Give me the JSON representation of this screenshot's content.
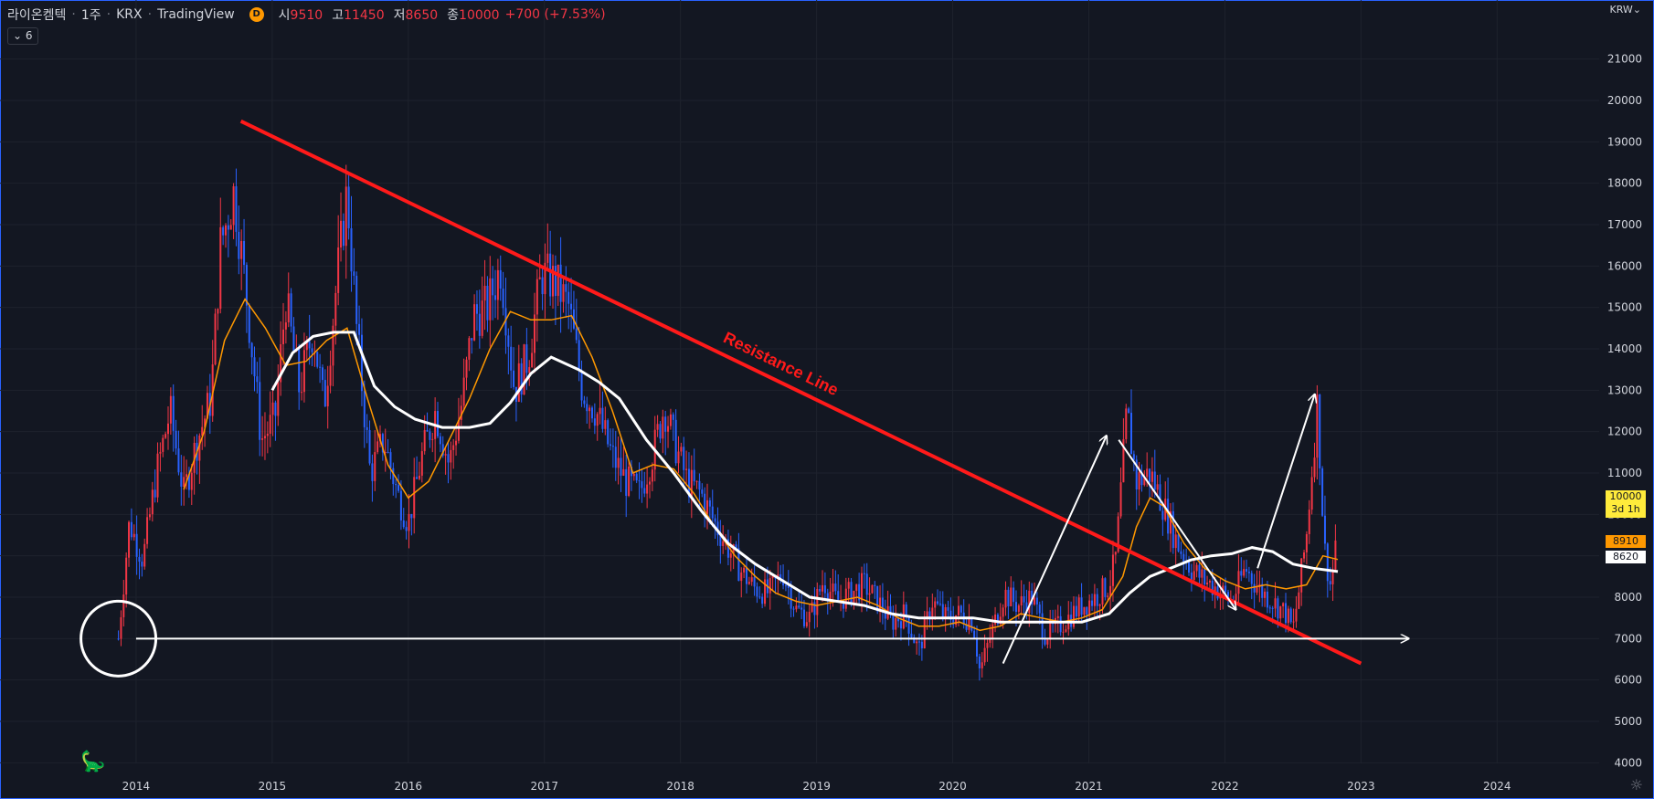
{
  "header": {
    "symbol": "라이온켐텍",
    "interval": "1주",
    "exchange": "KRX",
    "source": "TradingView",
    "badge": "D",
    "open_label": "시",
    "open": "9510",
    "high_label": "고",
    "high": "11450",
    "low_label": "저",
    "low": "8650",
    "close_label": "종",
    "close": "10000",
    "change": "+700 (+7.53%)",
    "indicator_toggle": "6",
    "currency": "KRW"
  },
  "colors": {
    "background": "#131722",
    "grid": "#1e222d",
    "up_candle": "#f23645",
    "down_candle": "#2962ff",
    "ma_short": "#ff9800",
    "ma_long": "#ffffff",
    "resistance": "#ff1a1a",
    "drawing": "#ffffff"
  },
  "price_tags": {
    "last": "10000",
    "countdown": "3d 1h",
    "ma_short_value": "8910",
    "ma_long_value": "8620"
  },
  "chart_data": {
    "type": "candlestick",
    "xlabel": "",
    "ylabel": "",
    "ylim": [
      3500,
      21500
    ],
    "yticks": [
      4000,
      5000,
      6000,
      7000,
      8000,
      9000,
      10000,
      11000,
      12000,
      13000,
      14000,
      15000,
      16000,
      17000,
      18000,
      19000,
      20000,
      21000
    ],
    "xlim": [
      2013.0,
      2024.75
    ],
    "xticks": [
      "2014",
      "2015",
      "2016",
      "2017",
      "2018",
      "2019",
      "2020",
      "2021",
      "2022",
      "2023",
      "2024"
    ],
    "grid": true,
    "close_series": [
      [
        2013.87,
        7000
      ],
      [
        2013.95,
        9800
      ],
      [
        2014.05,
        8900
      ],
      [
        2014.15,
        11000
      ],
      [
        2014.25,
        12500
      ],
      [
        2014.35,
        10500
      ],
      [
        2014.45,
        11800
      ],
      [
        2014.55,
        12800
      ],
      [
        2014.62,
        16500
      ],
      [
        2014.72,
        17800
      ],
      [
        2014.82,
        15000
      ],
      [
        2014.92,
        11800
      ],
      [
        2015.02,
        12300
      ],
      [
        2015.1,
        15200
      ],
      [
        2015.2,
        13000
      ],
      [
        2015.3,
        14500
      ],
      [
        2015.38,
        12600
      ],
      [
        2015.48,
        15800
      ],
      [
        2015.55,
        17800
      ],
      [
        2015.62,
        14500
      ],
      [
        2015.72,
        11000
      ],
      [
        2015.82,
        11800
      ],
      [
        2015.92,
        10500
      ],
      [
        2016.0,
        9800
      ],
      [
        2016.1,
        11400
      ],
      [
        2016.2,
        12500
      ],
      [
        2016.3,
        11200
      ],
      [
        2016.4,
        12800
      ],
      [
        2016.48,
        14800
      ],
      [
        2016.58,
        15000
      ],
      [
        2016.68,
        16000
      ],
      [
        2016.78,
        13000
      ],
      [
        2016.88,
        13800
      ],
      [
        2016.98,
        15800
      ],
      [
        2017.08,
        15600
      ],
      [
        2017.18,
        15000
      ],
      [
        2017.28,
        13000
      ],
      [
        2017.38,
        12500
      ],
      [
        2017.5,
        11400
      ],
      [
        2017.6,
        10800
      ],
      [
        2017.7,
        10500
      ],
      [
        2017.8,
        11500
      ],
      [
        2017.88,
        12600
      ],
      [
        2017.95,
        11800
      ],
      [
        2018.05,
        10800
      ],
      [
        2018.15,
        10500
      ],
      [
        2018.25,
        9800
      ],
      [
        2018.35,
        9200
      ],
      [
        2018.45,
        8600
      ],
      [
        2018.55,
        8200
      ],
      [
        2018.65,
        8100
      ],
      [
        2018.75,
        8600
      ],
      [
        2018.85,
        7700
      ],
      [
        2018.95,
        7500
      ],
      [
        2019.05,
        8400
      ],
      [
        2019.15,
        7900
      ],
      [
        2019.25,
        8100
      ],
      [
        2019.35,
        8300
      ],
      [
        2019.45,
        7900
      ],
      [
        2019.55,
        7400
      ],
      [
        2019.65,
        7600
      ],
      [
        2019.75,
        6700
      ],
      [
        2019.85,
        7900
      ],
      [
        2019.95,
        7500
      ],
      [
        2020.05,
        7600
      ],
      [
        2020.15,
        7400
      ],
      [
        2020.2,
        6200
      ],
      [
        2020.28,
        7100
      ],
      [
        2020.38,
        8100
      ],
      [
        2020.48,
        7800
      ],
      [
        2020.58,
        8000
      ],
      [
        2020.68,
        7100
      ],
      [
        2020.78,
        7300
      ],
      [
        2020.88,
        7600
      ],
      [
        2020.95,
        7800
      ],
      [
        2021.05,
        8000
      ],
      [
        2021.15,
        8300
      ],
      [
        2021.2,
        9000
      ],
      [
        2021.28,
        12500
      ],
      [
        2021.35,
        10800
      ],
      [
        2021.45,
        11000
      ],
      [
        2021.55,
        10200
      ],
      [
        2021.65,
        9300
      ],
      [
        2021.75,
        8700
      ],
      [
        2021.85,
        8400
      ],
      [
        2021.95,
        8200
      ],
      [
        2022.05,
        7900
      ],
      [
        2022.15,
        8700
      ],
      [
        2022.25,
        8200
      ],
      [
        2022.35,
        7900
      ],
      [
        2022.45,
        7600
      ],
      [
        2022.5,
        7200
      ],
      [
        2022.55,
        8300
      ],
      [
        2022.6,
        9500
      ],
      [
        2022.68,
        12700
      ],
      [
        2022.73,
        9200
      ],
      [
        2022.78,
        8200
      ],
      [
        2022.83,
        10000
      ]
    ],
    "series": [
      {
        "name": "",
        "color": "#ff9800",
        "type": "moving-average",
        "values": [
          [
            2014.35,
            10600
          ],
          [
            2014.5,
            12000
          ],
          [
            2014.65,
            14200
          ],
          [
            2014.8,
            15200
          ],
          [
            2014.95,
            14500
          ],
          [
            2015.1,
            13600
          ],
          [
            2015.25,
            13700
          ],
          [
            2015.4,
            14200
          ],
          [
            2015.55,
            14500
          ],
          [
            2015.7,
            12800
          ],
          [
            2015.85,
            11200
          ],
          [
            2016.0,
            10400
          ],
          [
            2016.15,
            10800
          ],
          [
            2016.3,
            11800
          ],
          [
            2016.45,
            12800
          ],
          [
            2016.6,
            14000
          ],
          [
            2016.75,
            14900
          ],
          [
            2016.9,
            14700
          ],
          [
            2017.05,
            14700
          ],
          [
            2017.2,
            14800
          ],
          [
            2017.35,
            13800
          ],
          [
            2017.5,
            12500
          ],
          [
            2017.65,
            11000
          ],
          [
            2017.8,
            11200
          ],
          [
            2017.95,
            11100
          ],
          [
            2018.1,
            10500
          ],
          [
            2018.25,
            9700
          ],
          [
            2018.4,
            9000
          ],
          [
            2018.55,
            8500
          ],
          [
            2018.7,
            8100
          ],
          [
            2018.85,
            7900
          ],
          [
            2019.0,
            7800
          ],
          [
            2019.15,
            7900
          ],
          [
            2019.3,
            8000
          ],
          [
            2019.45,
            7800
          ],
          [
            2019.6,
            7500
          ],
          [
            2019.75,
            7300
          ],
          [
            2019.9,
            7300
          ],
          [
            2020.05,
            7400
          ],
          [
            2020.2,
            7200
          ],
          [
            2020.35,
            7300
          ],
          [
            2020.5,
            7600
          ],
          [
            2020.65,
            7500
          ],
          [
            2020.8,
            7400
          ],
          [
            2020.95,
            7500
          ],
          [
            2021.1,
            7700
          ],
          [
            2021.25,
            8500
          ],
          [
            2021.35,
            9700
          ],
          [
            2021.45,
            10400
          ],
          [
            2021.55,
            10200
          ],
          [
            2021.7,
            9300
          ],
          [
            2021.85,
            8700
          ],
          [
            2022.0,
            8400
          ],
          [
            2022.15,
            8200
          ],
          [
            2022.3,
            8300
          ],
          [
            2022.45,
            8200
          ],
          [
            2022.6,
            8300
          ],
          [
            2022.72,
            9000
          ],
          [
            2022.83,
            8910
          ]
        ]
      },
      {
        "name": "",
        "color": "#ffffff",
        "type": "moving-average",
        "values": [
          [
            2015.0,
            13000
          ],
          [
            2015.15,
            13900
          ],
          [
            2015.3,
            14300
          ],
          [
            2015.45,
            14400
          ],
          [
            2015.6,
            14400
          ],
          [
            2015.75,
            13100
          ],
          [
            2015.9,
            12600
          ],
          [
            2016.05,
            12300
          ],
          [
            2016.25,
            12100
          ],
          [
            2016.45,
            12100
          ],
          [
            2016.6,
            12200
          ],
          [
            2016.75,
            12700
          ],
          [
            2016.9,
            13400
          ],
          [
            2017.05,
            13800
          ],
          [
            2017.25,
            13500
          ],
          [
            2017.4,
            13200
          ],
          [
            2017.55,
            12800
          ],
          [
            2017.75,
            11800
          ],
          [
            2017.95,
            11000
          ],
          [
            2018.15,
            10100
          ],
          [
            2018.35,
            9300
          ],
          [
            2018.55,
            8800
          ],
          [
            2018.75,
            8400
          ],
          [
            2018.95,
            8000
          ],
          [
            2019.15,
            7900
          ],
          [
            2019.35,
            7800
          ],
          [
            2019.55,
            7600
          ],
          [
            2019.75,
            7500
          ],
          [
            2019.95,
            7500
          ],
          [
            2020.15,
            7500
          ],
          [
            2020.35,
            7400
          ],
          [
            2020.55,
            7400
          ],
          [
            2020.75,
            7400
          ],
          [
            2020.95,
            7400
          ],
          [
            2021.15,
            7600
          ],
          [
            2021.3,
            8100
          ],
          [
            2021.45,
            8500
          ],
          [
            2021.6,
            8700
          ],
          [
            2021.75,
            8900
          ],
          [
            2021.9,
            9000
          ],
          [
            2022.05,
            9050
          ],
          [
            2022.2,
            9200
          ],
          [
            2022.35,
            9100
          ],
          [
            2022.5,
            8800
          ],
          [
            2022.65,
            8700
          ],
          [
            2022.83,
            8620
          ]
        ]
      }
    ],
    "annotations": [
      {
        "type": "trendline",
        "label": "Resistance Line",
        "color": "#ff1a1a",
        "points": [
          [
            2014.77,
            19500
          ],
          [
            2023.0,
            6400
          ]
        ]
      },
      {
        "type": "horizontal-arrow",
        "color": "#ffffff",
        "points": [
          [
            2014.0,
            7000
          ],
          [
            2023.35,
            7000
          ]
        ]
      },
      {
        "type": "circle",
        "color": "#ffffff",
        "center": [
          2013.87,
          7000
        ]
      },
      {
        "type": "arrow",
        "color": "#ffffff",
        "points": [
          [
            2020.37,
            6400
          ],
          [
            2021.13,
            11900
          ]
        ]
      },
      {
        "type": "arrow",
        "color": "#ffffff",
        "points": [
          [
            2021.22,
            11800
          ],
          [
            2022.08,
            7700
          ]
        ]
      },
      {
        "type": "arrow",
        "color": "#ffffff",
        "points": [
          [
            2022.24,
            8700
          ],
          [
            2022.66,
            12900
          ]
        ]
      }
    ]
  }
}
